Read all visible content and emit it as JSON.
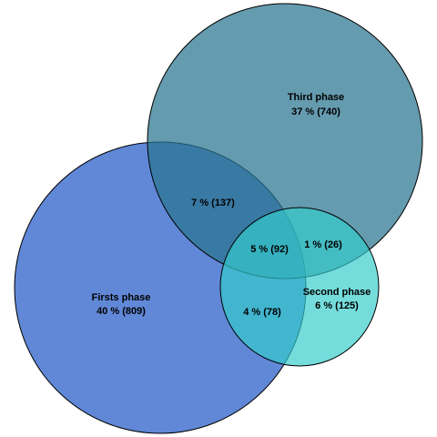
{
  "sets": [
    {
      "key": "first",
      "name": "Firsts phase",
      "value_label": "40 % (809)",
      "color": "#3366cc"
    },
    {
      "key": "second",
      "name": "Second phase",
      "value_label": "6 % (125)",
      "color": "#33cccc"
    },
    {
      "key": "third",
      "name": "Third phase",
      "value_label": "37 % (740)",
      "color": "#2a7490"
    }
  ],
  "regions": [
    {
      "key": "first-third",
      "sets": [
        "first",
        "third"
      ],
      "value_label": "7 % (137)"
    },
    {
      "key": "second-third",
      "sets": [
        "second",
        "third"
      ],
      "value_label": "1 % (26)"
    },
    {
      "key": "first-second",
      "sets": [
        "first",
        "second"
      ],
      "value_label": "4 % (78)"
    },
    {
      "key": "first-second-third",
      "sets": [
        "first",
        "second",
        "third"
      ],
      "value_label": "5 % (92)"
    }
  ]
}
